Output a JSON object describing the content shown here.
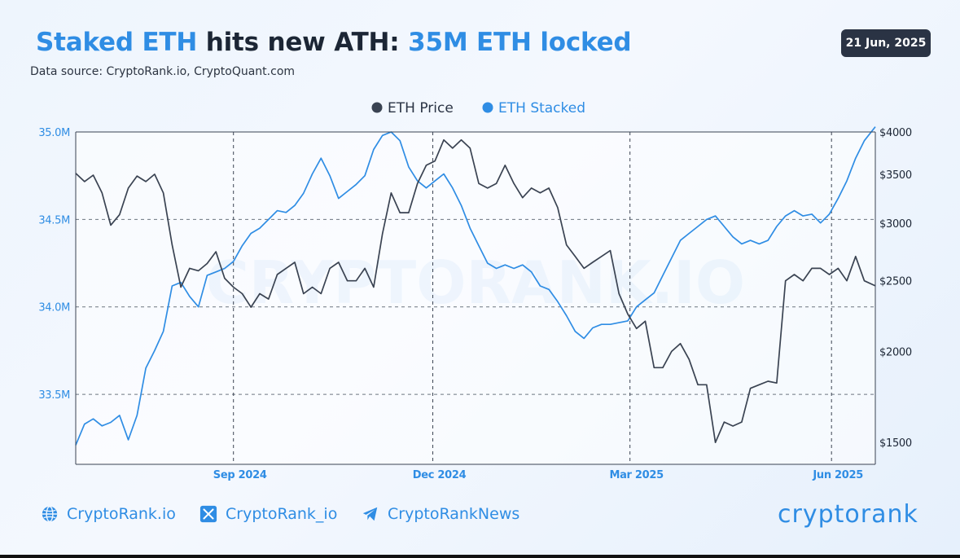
{
  "header": {
    "title_part1": "Staked ETH",
    "title_part2": "hits new ATH:",
    "title_part3": "35M ETH locked",
    "source": "Data source: CryptoRank.io, CryptoQuant.com",
    "date": "21 Jun, 2025"
  },
  "watermark": "CRYPTORANK.IO",
  "footer": {
    "links": [
      {
        "icon": "globe-icon",
        "label": "CryptoRank.io"
      },
      {
        "icon": "x-logo-icon",
        "label": "CryptoRank_io"
      },
      {
        "icon": "telegram-icon",
        "label": "CryptoRankNews"
      }
    ],
    "logo": "cryptorank"
  },
  "colors": {
    "price": "#3a4352",
    "staked": "#2f8de4",
    "accent": "#2f8de4"
  },
  "chart_data": {
    "type": "line",
    "title": "Staked ETH hits new ATH: 35M ETH locked",
    "legend": [
      "ETH Price",
      "ETH Stacked"
    ],
    "legend_position": "top-center",
    "x_ticks": [
      {
        "label": "Sep 2024",
        "date": "2024-09-01"
      },
      {
        "label": "Dec 2024",
        "date": "2024-12-01"
      },
      {
        "label": "Mar 2025",
        "date": "2025-03-01"
      },
      {
        "label": "Jun 2025",
        "date": "2025-06-01"
      }
    ],
    "x_range": [
      "2024-06-21",
      "2025-06-21"
    ],
    "left_axis": {
      "series": "ETH Stacked",
      "range": [
        33.1,
        35.0
      ],
      "ticks": [
        33.5,
        34.0,
        34.5,
        35.0
      ],
      "tick_labels": [
        "33.5M",
        "34.0M",
        "34.5M",
        "35.0M"
      ]
    },
    "right_axis": {
      "series": "ETH Price",
      "scale": "log",
      "range": [
        1400,
        4000
      ],
      "ticks": [
        1500,
        2000,
        2500,
        3000,
        3500,
        4000
      ],
      "tick_labels": [
        "$1500",
        "$2000",
        "$2500",
        "$3000",
        "$3500",
        "$4000"
      ]
    },
    "grid": "dashed",
    "series": [
      {
        "name": "ETH Stacked",
        "axis": "left",
        "points": [
          [
            "2024-06-21",
            33.21
          ],
          [
            "2024-06-25",
            33.33
          ],
          [
            "2024-06-29",
            33.36
          ],
          [
            "2024-07-03",
            33.32
          ],
          [
            "2024-07-07",
            33.34
          ],
          [
            "2024-07-11",
            33.38
          ],
          [
            "2024-07-15",
            33.24
          ],
          [
            "2024-07-19",
            33.38
          ],
          [
            "2024-07-23",
            33.65
          ],
          [
            "2024-07-27",
            33.75
          ],
          [
            "2024-07-31",
            33.86
          ],
          [
            "2024-08-04",
            34.12
          ],
          [
            "2024-08-08",
            34.14
          ],
          [
            "2024-08-12",
            34.06
          ],
          [
            "2024-08-16",
            34.0
          ],
          [
            "2024-08-20",
            34.18
          ],
          [
            "2024-08-24",
            34.2
          ],
          [
            "2024-08-28",
            34.22
          ],
          [
            "2024-09-01",
            34.26
          ],
          [
            "2024-09-05",
            34.35
          ],
          [
            "2024-09-09",
            34.42
          ],
          [
            "2024-09-13",
            34.45
          ],
          [
            "2024-09-17",
            34.5
          ],
          [
            "2024-09-21",
            34.55
          ],
          [
            "2024-09-25",
            34.54
          ],
          [
            "2024-09-29",
            34.58
          ],
          [
            "2024-10-03",
            34.65
          ],
          [
            "2024-10-07",
            34.76
          ],
          [
            "2024-10-11",
            34.85
          ],
          [
            "2024-10-15",
            34.75
          ],
          [
            "2024-10-19",
            34.62
          ],
          [
            "2024-10-23",
            34.66
          ],
          [
            "2024-10-27",
            34.7
          ],
          [
            "2024-10-31",
            34.75
          ],
          [
            "2024-11-04",
            34.9
          ],
          [
            "2024-11-08",
            34.98
          ],
          [
            "2024-11-12",
            35.0
          ],
          [
            "2024-11-16",
            34.95
          ],
          [
            "2024-11-20",
            34.8
          ],
          [
            "2024-11-24",
            34.72
          ],
          [
            "2024-11-28",
            34.68
          ],
          [
            "2024-12-02",
            34.72
          ],
          [
            "2024-12-06",
            34.76
          ],
          [
            "2024-12-10",
            34.68
          ],
          [
            "2024-12-14",
            34.58
          ],
          [
            "2024-12-18",
            34.45
          ],
          [
            "2024-12-22",
            34.35
          ],
          [
            "2024-12-26",
            34.25
          ],
          [
            "2024-12-30",
            34.22
          ],
          [
            "2025-01-03",
            34.24
          ],
          [
            "2025-01-07",
            34.22
          ],
          [
            "2025-01-11",
            34.24
          ],
          [
            "2025-01-15",
            34.2
          ],
          [
            "2025-01-19",
            34.12
          ],
          [
            "2025-01-23",
            34.1
          ],
          [
            "2025-01-27",
            34.03
          ],
          [
            "2025-01-31",
            33.95
          ],
          [
            "2025-02-04",
            33.86
          ],
          [
            "2025-02-08",
            33.82
          ],
          [
            "2025-02-12",
            33.88
          ],
          [
            "2025-02-16",
            33.9
          ],
          [
            "2025-02-20",
            33.9
          ],
          [
            "2025-02-24",
            33.91
          ],
          [
            "2025-02-28",
            33.92
          ],
          [
            "2025-03-04",
            34.0
          ],
          [
            "2025-03-08",
            34.04
          ],
          [
            "2025-03-12",
            34.08
          ],
          [
            "2025-03-16",
            34.18
          ],
          [
            "2025-03-20",
            34.28
          ],
          [
            "2025-03-24",
            34.38
          ],
          [
            "2025-03-28",
            34.42
          ],
          [
            "2025-04-01",
            34.46
          ],
          [
            "2025-04-05",
            34.5
          ],
          [
            "2025-04-09",
            34.52
          ],
          [
            "2025-04-13",
            34.46
          ],
          [
            "2025-04-17",
            34.4
          ],
          [
            "2025-04-21",
            34.36
          ],
          [
            "2025-04-25",
            34.38
          ],
          [
            "2025-04-29",
            34.36
          ],
          [
            "2025-05-03",
            34.38
          ],
          [
            "2025-05-07",
            34.46
          ],
          [
            "2025-05-11",
            34.52
          ],
          [
            "2025-05-15",
            34.55
          ],
          [
            "2025-05-19",
            34.52
          ],
          [
            "2025-05-23",
            34.53
          ],
          [
            "2025-05-27",
            34.48
          ],
          [
            "2025-05-31",
            34.53
          ],
          [
            "2025-06-04",
            34.62
          ],
          [
            "2025-06-08",
            34.72
          ],
          [
            "2025-06-12",
            34.85
          ],
          [
            "2025-06-16",
            34.95
          ],
          [
            "2025-06-21",
            35.03
          ]
        ]
      },
      {
        "name": "ETH Price",
        "axis": "right",
        "points": [
          [
            "2024-06-21",
            3510
          ],
          [
            "2024-06-25",
            3420
          ],
          [
            "2024-06-29",
            3490
          ],
          [
            "2024-07-03",
            3300
          ],
          [
            "2024-07-07",
            2980
          ],
          [
            "2024-07-11",
            3080
          ],
          [
            "2024-07-15",
            3350
          ],
          [
            "2024-07-19",
            3480
          ],
          [
            "2024-07-23",
            3420
          ],
          [
            "2024-07-27",
            3500
          ],
          [
            "2024-07-31",
            3300
          ],
          [
            "2024-08-04",
            2800
          ],
          [
            "2024-08-08",
            2450
          ],
          [
            "2024-08-12",
            2600
          ],
          [
            "2024-08-16",
            2580
          ],
          [
            "2024-08-20",
            2640
          ],
          [
            "2024-08-24",
            2740
          ],
          [
            "2024-08-28",
            2520
          ],
          [
            "2024-09-01",
            2450
          ],
          [
            "2024-09-05",
            2400
          ],
          [
            "2024-09-09",
            2300
          ],
          [
            "2024-09-13",
            2400
          ],
          [
            "2024-09-17",
            2360
          ],
          [
            "2024-09-21",
            2550
          ],
          [
            "2024-09-25",
            2600
          ],
          [
            "2024-09-29",
            2650
          ],
          [
            "2024-10-03",
            2400
          ],
          [
            "2024-10-07",
            2450
          ],
          [
            "2024-10-11",
            2400
          ],
          [
            "2024-10-15",
            2600
          ],
          [
            "2024-10-19",
            2650
          ],
          [
            "2024-10-23",
            2500
          ],
          [
            "2024-10-27",
            2500
          ],
          [
            "2024-10-31",
            2600
          ],
          [
            "2024-11-04",
            2450
          ],
          [
            "2024-11-08",
            2900
          ],
          [
            "2024-11-12",
            3300
          ],
          [
            "2024-11-16",
            3100
          ],
          [
            "2024-11-20",
            3100
          ],
          [
            "2024-11-24",
            3400
          ],
          [
            "2024-11-28",
            3600
          ],
          [
            "2024-12-02",
            3650
          ],
          [
            "2024-12-06",
            3900
          ],
          [
            "2024-12-10",
            3800
          ],
          [
            "2024-12-14",
            3900
          ],
          [
            "2024-12-18",
            3800
          ],
          [
            "2024-12-22",
            3400
          ],
          [
            "2024-12-26",
            3350
          ],
          [
            "2024-12-30",
            3400
          ],
          [
            "2025-01-03",
            3600
          ],
          [
            "2025-01-07",
            3400
          ],
          [
            "2025-01-11",
            3250
          ],
          [
            "2025-01-15",
            3350
          ],
          [
            "2025-01-19",
            3300
          ],
          [
            "2025-01-23",
            3350
          ],
          [
            "2025-01-27",
            3150
          ],
          [
            "2025-01-31",
            2800
          ],
          [
            "2025-02-04",
            2700
          ],
          [
            "2025-02-08",
            2600
          ],
          [
            "2025-02-12",
            2650
          ],
          [
            "2025-02-16",
            2700
          ],
          [
            "2025-02-20",
            2750
          ],
          [
            "2025-02-24",
            2400
          ],
          [
            "2025-02-28",
            2250
          ],
          [
            "2025-03-04",
            2150
          ],
          [
            "2025-03-08",
            2200
          ],
          [
            "2025-03-12",
            1900
          ],
          [
            "2025-03-16",
            1900
          ],
          [
            "2025-03-20",
            2000
          ],
          [
            "2025-03-24",
            2050
          ],
          [
            "2025-03-28",
            1950
          ],
          [
            "2025-04-01",
            1800
          ],
          [
            "2025-04-05",
            1800
          ],
          [
            "2025-04-09",
            1500
          ],
          [
            "2025-04-13",
            1600
          ],
          [
            "2025-04-17",
            1580
          ],
          [
            "2025-04-21",
            1600
          ],
          [
            "2025-04-25",
            1780
          ],
          [
            "2025-04-29",
            1800
          ],
          [
            "2025-05-03",
            1820
          ],
          [
            "2025-05-07",
            1810
          ],
          [
            "2025-05-11",
            2500
          ],
          [
            "2025-05-15",
            2550
          ],
          [
            "2025-05-19",
            2500
          ],
          [
            "2025-05-23",
            2600
          ],
          [
            "2025-05-27",
            2600
          ],
          [
            "2025-05-31",
            2550
          ],
          [
            "2025-06-04",
            2600
          ],
          [
            "2025-06-08",
            2500
          ],
          [
            "2025-06-12",
            2700
          ],
          [
            "2025-06-16",
            2500
          ],
          [
            "2025-06-21",
            2460
          ]
        ]
      }
    ]
  }
}
